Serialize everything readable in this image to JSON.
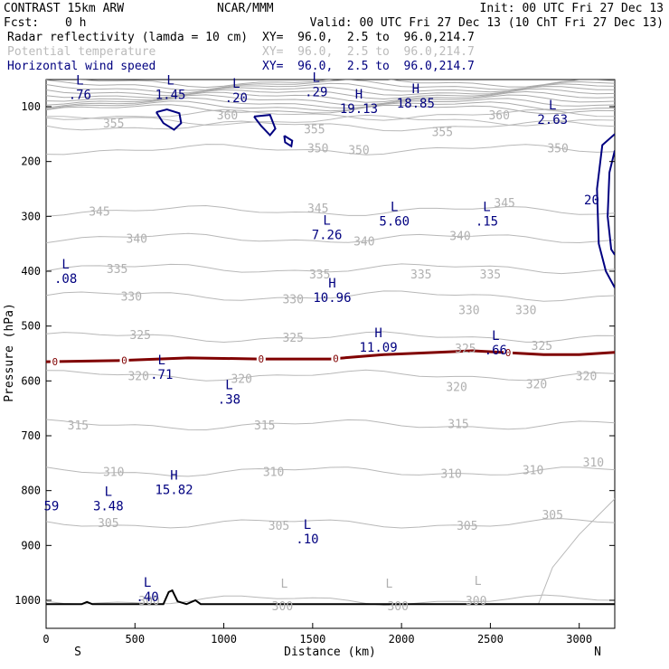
{
  "header": {
    "model": "CONTRAST 15km ARW",
    "center": "NCAR/MMM",
    "init": "Init: 00 UTC Fri 27 Dec 13",
    "fcst_label": "Fcst:",
    "fcst_value": "0 h",
    "valid": "Valid: 00 UTC Fri 27 Dec 13 (10 ChT Fri 27 Dec 13)"
  },
  "fields": [
    {
      "name": "Radar reflectivity (lamda = 10 cm)",
      "xy": "XY=  96.0,  2.5 to  96.0,214.7",
      "color": "#000000"
    },
    {
      "name": "Potential temperature",
      "xy": "XY=  96.0,  2.5 to  96.0,214.7",
      "color": "#bbbbbb"
    },
    {
      "name": "Horizontal wind speed",
      "xy": "XY=  96.0,  2.5 to  96.0,214.7",
      "color": "#000080"
    }
  ],
  "chart_data": {
    "type": "cross-section",
    "xlabel": "Distance (km)",
    "ylabel": "Pressure (hPa)",
    "xlim": [
      0,
      3200
    ],
    "ylim_hpa": [
      1050,
      50
    ],
    "x_ticks": [
      0,
      500,
      1000,
      1500,
      2000,
      2500,
      3000
    ],
    "y_ticks": [
      100,
      200,
      300,
      400,
      500,
      600,
      700,
      800,
      900,
      1000
    ],
    "end_labels": {
      "left": "S",
      "right": "N"
    },
    "theta_levels": [
      {
        "theta": 355,
        "p": 135,
        "labels": [
          [
            380,
            130
          ],
          [
            1510,
            140
          ],
          [
            2230,
            145
          ]
        ]
      },
      {
        "theta": 360,
        "p": 115,
        "labels": [
          [
            1020,
            115
          ],
          [
            2550,
            115
          ]
        ]
      },
      {
        "theta": 350,
        "p": 178,
        "labels": [
          [
            1530,
            175
          ],
          [
            1760,
            178
          ],
          [
            2880,
            175
          ]
        ]
      },
      {
        "theta": 345,
        "p": 290,
        "labels": [
          [
            300,
            290
          ],
          [
            1530,
            285
          ],
          [
            2580,
            275
          ]
        ]
      },
      {
        "theta": 340,
        "p": 340,
        "labels": [
          [
            510,
            340
          ],
          [
            1790,
            345
          ],
          [
            2330,
            335
          ]
        ]
      },
      {
        "theta": 335,
        "p": 395,
        "labels": [
          [
            400,
            395
          ],
          [
            1540,
            405
          ],
          [
            2110,
            405
          ],
          [
            2500,
            405
          ]
        ]
      },
      {
        "theta": 330,
        "p": 445,
        "labels": [
          [
            480,
            445
          ],
          [
            1390,
            450
          ],
          [
            2380,
            470
          ],
          [
            2700,
            470
          ]
        ]
      },
      {
        "theta": 325,
        "p": 520,
        "labels": [
          [
            530,
            515
          ],
          [
            1390,
            520
          ],
          [
            2360,
            540
          ],
          [
            2790,
            535
          ]
        ]
      },
      {
        "theta": 320,
        "p": 590,
        "labels": [
          [
            520,
            590
          ],
          [
            1100,
            595
          ],
          [
            2310,
            610
          ],
          [
            2760,
            605
          ],
          [
            3040,
            590
          ]
        ]
      },
      {
        "theta": 315,
        "p": 680,
        "labels": [
          [
            180,
            680
          ],
          [
            1230,
            680
          ],
          [
            2320,
            678
          ]
        ]
      },
      {
        "theta": 310,
        "p": 765,
        "labels": [
          [
            380,
            765
          ],
          [
            1280,
            765
          ],
          [
            2280,
            768
          ],
          [
            2740,
            762
          ],
          [
            3080,
            748
          ]
        ]
      },
      {
        "theta": 305,
        "p": 860,
        "labels": [
          [
            350,
            858
          ],
          [
            1310,
            863
          ],
          [
            2370,
            863
          ],
          [
            2850,
            843
          ]
        ]
      },
      {
        "theta": 300,
        "p": 1000,
        "labels": [
          [
            580,
            1000
          ],
          [
            1330,
            1010
          ],
          [
            1980,
            1010
          ],
          [
            2420,
            1000
          ]
        ]
      }
    ],
    "theta_L_marks": [
      [
        1340,
        990
      ],
      [
        1930,
        990
      ],
      [
        2430,
        985
      ]
    ],
    "extrema": [
      {
        "type": "L",
        "value": ".76",
        "x": 190,
        "p": 60
      },
      {
        "type": "L",
        "value": "1.45",
        "x": 700,
        "p": 60
      },
      {
        "type": "L",
        "value": ".20",
        "x": 1070,
        "p": 65
      },
      {
        "type": "L",
        "value": ".29",
        "x": 1520,
        "p": 55
      },
      {
        "type": "H",
        "value": "19.13",
        "x": 1760,
        "p": 85
      },
      {
        "type": "H",
        "value": "18.85",
        "x": 2080,
        "p": 75
      },
      {
        "type": "L",
        "value": "2.63",
        "x": 2850,
        "p": 105
      },
      {
        "type": "L",
        "value": "7.26",
        "x": 1580,
        "p": 315
      },
      {
        "type": "L",
        "value": "5.60",
        "x": 1960,
        "p": 290
      },
      {
        "type": "L",
        "value": ".15",
        "x": 2480,
        "p": 290
      },
      {
        "type": "L",
        "value": ".08",
        "x": 110,
        "p": 395
      },
      {
        "type": "H",
        "value": "10.96",
        "x": 1610,
        "p": 430
      },
      {
        "type": "H",
        "value": "11.09",
        "x": 1870,
        "p": 520
      },
      {
        "type": "L",
        "value": ".66",
        "x": 2530,
        "p": 525
      },
      {
        "type": "L",
        "value": ".71",
        "x": 650,
        "p": 570
      },
      {
        "type": "L",
        "value": ".38",
        "x": 1030,
        "p": 615
      },
      {
        "type": "H",
        "value": "15.82",
        "x": 720,
        "p": 780
      },
      {
        "type": "L",
        "value": "3.48",
        "x": 350,
        "p": 810
      },
      {
        "type": "L",
        "value": ".10",
        "x": 1470,
        "p": 870
      },
      {
        "type": "L",
        "value": ".40",
        "x": 570,
        "p": 975
      }
    ],
    "edge_labels": [
      {
        "text": "59",
        "x": 30,
        "p": 828
      },
      {
        "text": "20",
        "x": 3070,
        "p": 270
      }
    ],
    "zero_line": {
      "label": "0",
      "points": [
        [
          0,
          565
        ],
        [
          400,
          563
        ],
        [
          800,
          558
        ],
        [
          1200,
          560
        ],
        [
          1600,
          560
        ],
        [
          1900,
          552
        ],
        [
          2200,
          548
        ],
        [
          2400,
          545
        ],
        [
          2800,
          552
        ],
        [
          3000,
          552
        ],
        [
          3200,
          548
        ]
      ],
      "label_positions": [
        50,
        440,
        1210,
        1630,
        2600
      ]
    },
    "wind_contours": [
      {
        "points": [
          [
            620,
            110
          ],
          [
            680,
            105
          ],
          [
            750,
            112
          ],
          [
            760,
            130
          ],
          [
            720,
            142
          ],
          [
            660,
            130
          ],
          [
            620,
            110
          ]
        ]
      },
      {
        "points": [
          [
            1170,
            118
          ],
          [
            1260,
            115
          ],
          [
            1290,
            140
          ],
          [
            1260,
            152
          ],
          [
            1210,
            135
          ],
          [
            1170,
            118
          ]
        ]
      },
      {
        "points": [
          [
            1340,
            153
          ],
          [
            1385,
            162
          ],
          [
            1380,
            172
          ],
          [
            1345,
            165
          ],
          [
            1340,
            153
          ]
        ]
      },
      {
        "points": [
          [
            3200,
            150
          ],
          [
            3130,
            170
          ],
          [
            3100,
            250
          ],
          [
            3110,
            350
          ],
          [
            3150,
            400
          ],
          [
            3200,
            430
          ]
        ]
      },
      {
        "points": [
          [
            3200,
            180
          ],
          [
            3170,
            220
          ],
          [
            3160,
            300
          ],
          [
            3180,
            360
          ],
          [
            3200,
            370
          ]
        ]
      }
    ],
    "terrain": {
      "points": [
        [
          0,
          1007
        ],
        [
          200,
          1007
        ],
        [
          230,
          1003
        ],
        [
          260,
          1007
        ],
        [
          660,
          1007
        ],
        [
          690,
          985
        ],
        [
          710,
          982
        ],
        [
          740,
          1002
        ],
        [
          790,
          1007
        ],
        [
          840,
          1000
        ],
        [
          870,
          1007
        ],
        [
          3200,
          1007
        ]
      ]
    }
  }
}
